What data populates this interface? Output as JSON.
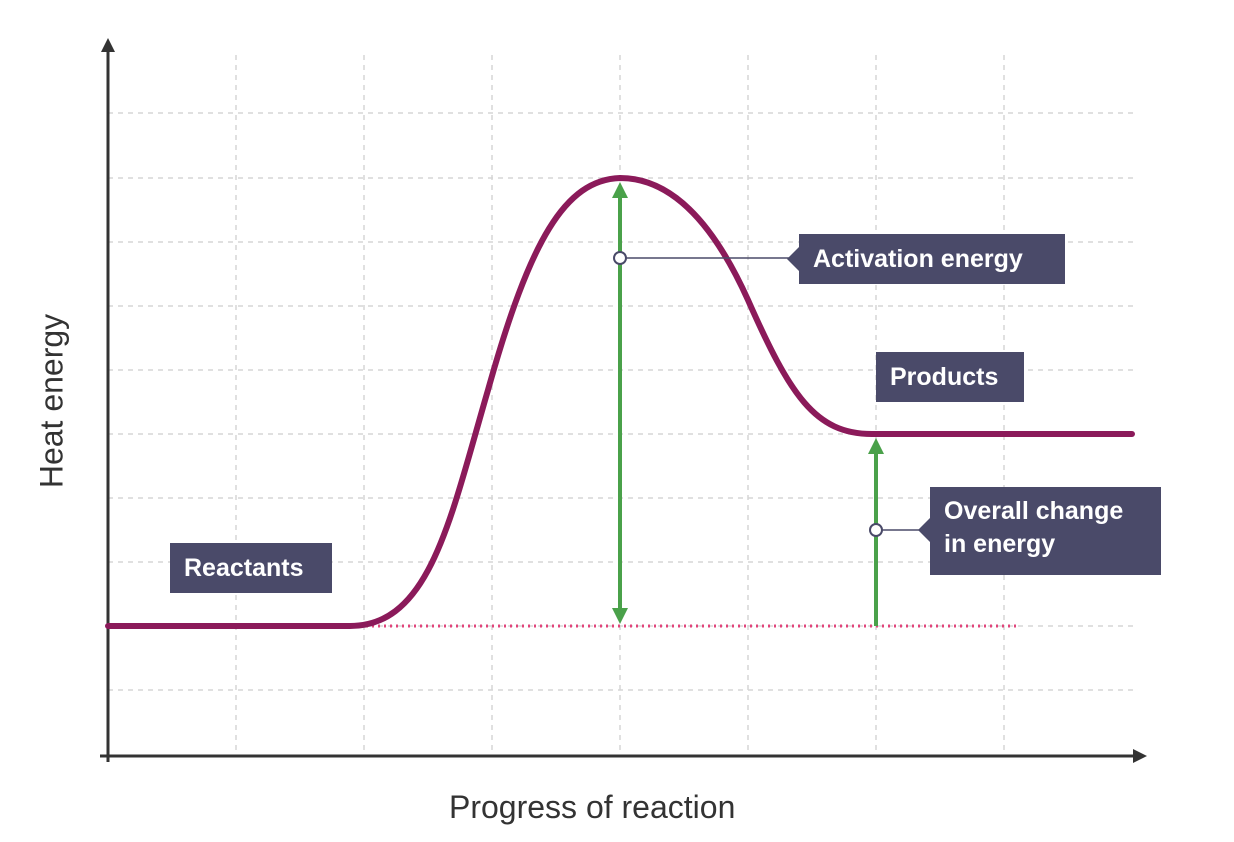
{
  "axes": {
    "x_label": "Progress of reaction",
    "y_label": "Heat energy"
  },
  "labels": {
    "reactants": "Reactants",
    "products": "Products",
    "activation_energy": "Activation energy",
    "overall_change_line1": "Overall change",
    "overall_change_line2": "in energy"
  },
  "colors": {
    "curve": "#8b1a5a",
    "arrows": "#4aa14a",
    "baseline_dotted": "#e0457b",
    "callout_bg": "#4a4a69",
    "grid": "#d6d6d6",
    "axis": "#333333"
  }
}
